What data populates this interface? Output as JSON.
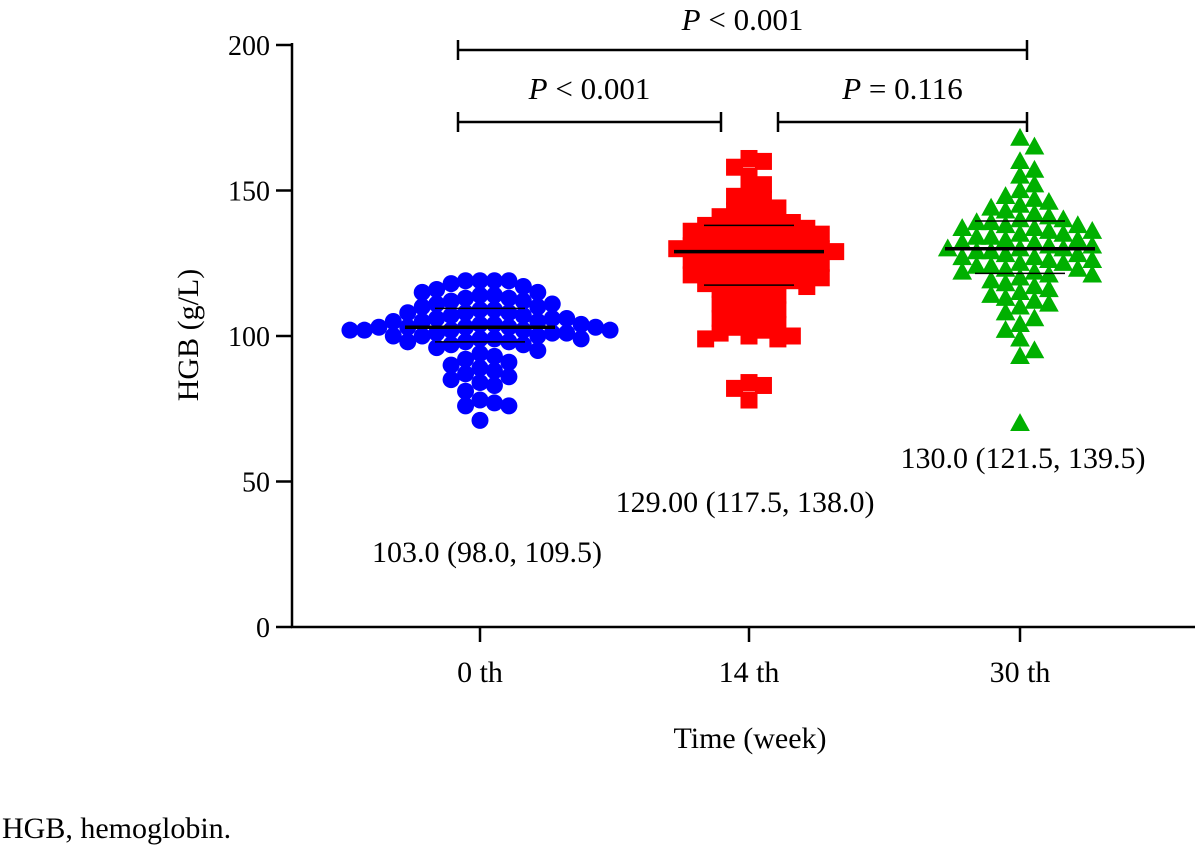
{
  "chart_data": {
    "type": "scatter",
    "title": "",
    "xlabel": "Time (week)",
    "ylabel": "HGB (g/L)",
    "ylim": [
      0,
      200
    ],
    "yticks": [
      0,
      50,
      100,
      150,
      200
    ],
    "categories": [
      "0 th",
      "14 th",
      "30 th"
    ],
    "grid": false,
    "legend": "none",
    "series": [
      {
        "category": "0 th",
        "marker": "circle",
        "color": "#0000ff",
        "median": 103.0,
        "q1": 98.0,
        "q3": 109.5,
        "summary_label": "103.0 (98.0, 109.5)",
        "values": [
          119,
          119,
          119,
          119,
          118,
          117,
          116,
          115,
          115,
          114,
          114,
          113,
          113,
          112,
          112,
          111,
          111,
          110,
          110,
          109,
          109,
          108,
          108,
          108,
          107,
          107,
          106,
          106,
          106,
          105,
          105,
          105,
          104,
          104,
          104,
          103,
          103,
          103,
          103,
          103,
          102,
          102,
          102,
          102,
          102,
          101,
          101,
          101,
          100,
          100,
          100,
          99,
          99,
          99,
          98,
          98,
          98,
          97,
          97,
          96,
          95,
          94,
          93,
          92,
          91,
          90,
          89,
          88,
          87,
          86,
          85,
          84,
          83,
          81,
          78,
          77,
          76,
          76,
          71
        ]
      },
      {
        "category": "14 th",
        "marker": "square",
        "color": "#ff0000",
        "median": 129.0,
        "q1": 117.5,
        "q3": 138.0,
        "summary_label": "129.00 (117.5, 138.0)",
        "values": [
          161,
          160,
          158,
          155,
          152,
          150,
          148,
          147,
          145,
          144,
          143,
          142,
          141,
          140,
          139,
          139,
          138,
          138,
          137,
          137,
          136,
          136,
          135,
          135,
          134,
          134,
          133,
          133,
          132,
          132,
          131,
          131,
          130,
          130,
          130,
          129,
          129,
          129,
          128,
          128,
          127,
          127,
          126,
          126,
          125,
          125,
          124,
          124,
          123,
          123,
          122,
          122,
          121,
          121,
          120,
          120,
          119,
          119,
          118,
          118,
          117,
          117,
          116,
          115,
          114,
          113,
          112,
          111,
          110,
          109,
          108,
          107,
          106,
          105,
          104,
          103,
          102,
          101,
          100,
          100,
          99,
          99,
          84,
          83,
          82,
          78
        ]
      },
      {
        "category": "30 th",
        "marker": "triangle",
        "color": "#00b000",
        "median": 130.0,
        "q1": 121.5,
        "q3": 139.5,
        "summary_label": "130.0 (121.5, 139.5)",
        "values": [
          168,
          165,
          160,
          157,
          155,
          152,
          150,
          148,
          147,
          146,
          145,
          144,
          143,
          142,
          141,
          140,
          140,
          139,
          139,
          138,
          138,
          137,
          137,
          136,
          136,
          135,
          135,
          134,
          134,
          133,
          133,
          132,
          132,
          131,
          131,
          130,
          130,
          130,
          129,
          129,
          128,
          128,
          127,
          127,
          126,
          126,
          125,
          125,
          124,
          124,
          123,
          123,
          122,
          122,
          121,
          121,
          120,
          119,
          118,
          117,
          116,
          115,
          114,
          113,
          112,
          111,
          110,
          108,
          106,
          104,
          102,
          99,
          95,
          93,
          70
        ]
      }
    ],
    "comparisons": [
      {
        "from": "0 th",
        "to": "30 th",
        "p_label_italic": "P",
        "p_label_rest": " < 0.001",
        "y": 195
      },
      {
        "from": "0 th",
        "to": "14 th",
        "p_label_italic": "P",
        "p_label_rest": " < 0.001",
        "y": 173
      },
      {
        "from": "14 th",
        "to": "30 th",
        "p_label_italic": "P",
        "p_label_rest": " = 0.116",
        "y": 173
      }
    ]
  },
  "footnote": "HGB, hemoglobin."
}
